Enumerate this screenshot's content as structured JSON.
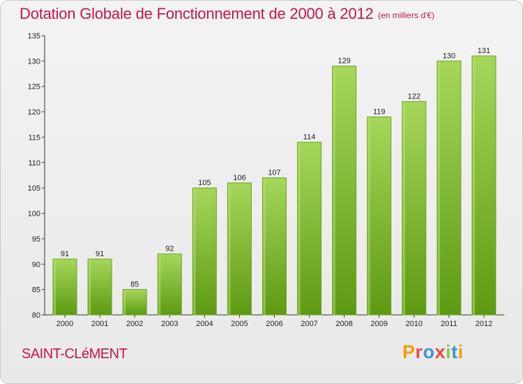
{
  "header": {
    "title": "Dotation Globale de Fonctionnement de 2000 à 2012",
    "subtitle": "(en milliers d'€)"
  },
  "footer": {
    "commune": "SAINT-CLéMENT",
    "brand": "Proxiti",
    "brand_colors": [
      "#f39c12",
      "#e74c3c",
      "#3498db",
      "#e74c3c",
      "#8dc63f",
      "#3498db",
      "#f39c12"
    ]
  },
  "colors": {
    "bar_top": "#a6d75b",
    "bar_bottom": "#5d9a12",
    "bar_stroke": "#6aa51e",
    "title": "#c0184c"
  },
  "chart_data": {
    "type": "bar",
    "title": "Dotation Globale de Fonctionnement de 2000 à 2012",
    "subtitle": "(en milliers d'€)",
    "xlabel": "",
    "ylabel": "",
    "categories": [
      "2000",
      "2001",
      "2002",
      "2003",
      "2004",
      "2005",
      "2006",
      "2007",
      "2008",
      "2009",
      "2010",
      "2011",
      "2012"
    ],
    "values": [
      91,
      91,
      85,
      92,
      105,
      106,
      107,
      114,
      129,
      119,
      122,
      130,
      131
    ],
    "ylim": [
      80,
      135
    ],
    "yticks": [
      80,
      85,
      90,
      95,
      100,
      105,
      110,
      115,
      120,
      125,
      130,
      135
    ],
    "grid": false,
    "legend": "none"
  }
}
